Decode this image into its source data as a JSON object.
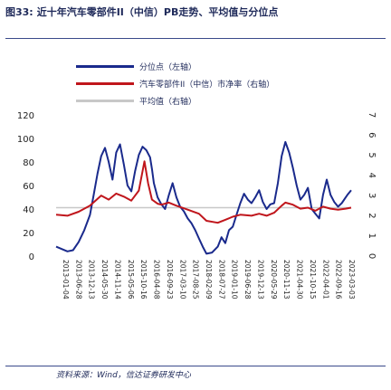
{
  "title": {
    "figure_no": "图33:",
    "text": "近十年汽车零部件II（中信）PB走势、平均值与分位点"
  },
  "legend": [
    {
      "label": "分位点（左轴）",
      "color": "#1a2a8c"
    },
    {
      "label": "汽车零部件II（中信）市净率（右轴）",
      "color": "#c0161c"
    },
    {
      "label": "平均值（右轴）",
      "color": "#c8c8c8"
    }
  ],
  "source": "资料来源：Wind，信达证券研发中心",
  "chart_data": {
    "type": "line",
    "x": [
      "2013-01-04",
      "2013-06-28",
      "2013-12-13",
      "2014-05-30",
      "2014-11-14",
      "2015-05-06",
      "2015-10-16",
      "2016-04-08",
      "2016-09-23",
      "2017-03-10",
      "2017-08-25",
      "2018-02-09",
      "2018-07-27",
      "2019-01-10",
      "2019-06-28",
      "2019-12-13",
      "2020-05-29",
      "2020-11-13",
      "2021-04-30",
      "2021-10-15",
      "2022-04-01",
      "2022-09-16",
      "2023-03-03"
    ],
    "y_left_label": "",
    "y_right_label": "",
    "ylim_left": [
      0,
      120
    ],
    "yticks_left": [
      0,
      20,
      40,
      60,
      80,
      100,
      120
    ],
    "ylim_right": [
      0,
      7
    ],
    "yticks_right": [
      0,
      1,
      2,
      3,
      4,
      5,
      6,
      7
    ],
    "average": 2.4,
    "series": [
      {
        "name": "分位点（左轴）",
        "axis": "left",
        "color": "#1a2a8c",
        "values": [
          [
            0,
            8
          ],
          [
            30,
            6
          ],
          [
            60,
            4
          ],
          [
            90,
            5
          ],
          [
            120,
            12
          ],
          [
            150,
            22
          ],
          [
            180,
            35
          ],
          [
            200,
            52
          ],
          [
            220,
            70
          ],
          [
            240,
            85
          ],
          [
            260,
            92
          ],
          [
            280,
            80
          ],
          [
            300,
            65
          ],
          [
            320,
            88
          ],
          [
            340,
            95
          ],
          [
            360,
            78
          ],
          [
            380,
            60
          ],
          [
            400,
            55
          ],
          [
            420,
            72
          ],
          [
            440,
            86
          ],
          [
            460,
            93
          ],
          [
            480,
            90
          ],
          [
            500,
            84
          ],
          [
            510,
            74
          ],
          [
            520,
            62
          ],
          [
            540,
            50
          ],
          [
            560,
            44
          ],
          [
            580,
            40
          ],
          [
            600,
            52
          ],
          [
            620,
            62
          ],
          [
            640,
            50
          ],
          [
            660,
            42
          ],
          [
            680,
            38
          ],
          [
            700,
            32
          ],
          [
            720,
            28
          ],
          [
            740,
            22
          ],
          [
            760,
            15
          ],
          [
            780,
            8
          ],
          [
            800,
            2
          ],
          [
            830,
            3
          ],
          [
            860,
            8
          ],
          [
            880,
            16
          ],
          [
            900,
            11
          ],
          [
            920,
            22
          ],
          [
            940,
            25
          ],
          [
            960,
            35
          ],
          [
            980,
            45
          ],
          [
            1000,
            53
          ],
          [
            1020,
            48
          ],
          [
            1040,
            45
          ],
          [
            1060,
            50
          ],
          [
            1080,
            56
          ],
          [
            1100,
            46
          ],
          [
            1120,
            40
          ],
          [
            1140,
            44
          ],
          [
            1160,
            45
          ],
          [
            1180,
            62
          ],
          [
            1200,
            85
          ],
          [
            1220,
            97
          ],
          [
            1240,
            88
          ],
          [
            1260,
            75
          ],
          [
            1280,
            60
          ],
          [
            1300,
            48
          ],
          [
            1320,
            52
          ],
          [
            1340,
            58
          ],
          [
            1360,
            40
          ],
          [
            1380,
            36
          ],
          [
            1400,
            32
          ],
          [
            1420,
            52
          ],
          [
            1440,
            65
          ],
          [
            1460,
            52
          ],
          [
            1480,
            46
          ],
          [
            1500,
            42
          ],
          [
            1520,
            45
          ],
          [
            1550,
            52
          ],
          [
            1570,
            56
          ]
        ]
      },
      {
        "name": "汽车零部件II（中信）市净率（右轴）",
        "axis": "right",
        "color": "#c0161c",
        "values": [
          [
            0,
            2.05
          ],
          [
            60,
            2.0
          ],
          [
            120,
            2.2
          ],
          [
            180,
            2.5
          ],
          [
            240,
            3.0
          ],
          [
            280,
            2.8
          ],
          [
            320,
            3.1
          ],
          [
            360,
            2.95
          ],
          [
            400,
            2.75
          ],
          [
            440,
            3.25
          ],
          [
            470,
            4.7
          ],
          [
            490,
            3.6
          ],
          [
            510,
            2.8
          ],
          [
            540,
            2.6
          ],
          [
            560,
            2.55
          ],
          [
            600,
            2.65
          ],
          [
            640,
            2.5
          ],
          [
            700,
            2.3
          ],
          [
            760,
            2.1
          ],
          [
            800,
            1.75
          ],
          [
            860,
            1.65
          ],
          [
            900,
            1.8
          ],
          [
            940,
            1.95
          ],
          [
            980,
            2.05
          ],
          [
            1040,
            2.0
          ],
          [
            1080,
            2.1
          ],
          [
            1120,
            2.0
          ],
          [
            1160,
            2.15
          ],
          [
            1200,
            2.5
          ],
          [
            1220,
            2.65
          ],
          [
            1260,
            2.55
          ],
          [
            1300,
            2.35
          ],
          [
            1340,
            2.4
          ],
          [
            1380,
            2.25
          ],
          [
            1420,
            2.45
          ],
          [
            1460,
            2.35
          ],
          [
            1500,
            2.3
          ],
          [
            1540,
            2.35
          ],
          [
            1570,
            2.4
          ]
        ]
      },
      {
        "name": "平均值（右轴）",
        "axis": "right",
        "color": "#c8c8c8",
        "values": [
          [
            0,
            2.4
          ],
          [
            1570,
            2.4
          ]
        ]
      }
    ]
  }
}
